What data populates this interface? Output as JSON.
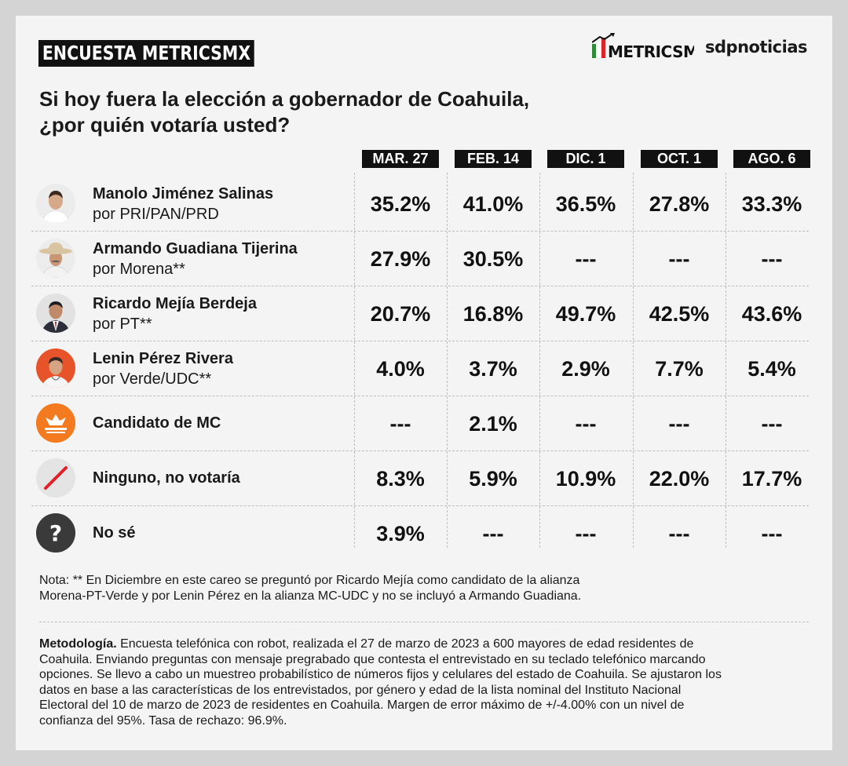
{
  "header": {
    "tag": "ENCUESTA METRICSMX",
    "logo_metrics": "METRICSMX",
    "logo_sdp": "sdpnoticias"
  },
  "question_lines": [
    "Si hoy fuera la elección a gobernador de Coahuila,",
    "¿por quién votaría usted?"
  ],
  "chart_data": {
    "type": "table",
    "columns": [
      "MAR. 27",
      "FEB. 14",
      "DIC. 1",
      "OCT. 1",
      "AGO. 6"
    ],
    "rows": [
      {
        "name": "Manolo Jiménez Salinas",
        "party": "por PRI/PAN/PRD",
        "avatar": "person-photo",
        "values": [
          "35.2%",
          "41.0%",
          "36.5%",
          "27.8%",
          "33.3%"
        ]
      },
      {
        "name": "Armando Guadiana Tijerina",
        "party": "por Morena**",
        "avatar": "person-photo",
        "values": [
          "27.9%",
          "30.5%",
          "---",
          "---",
          "---"
        ]
      },
      {
        "name": "Ricardo Mejía Berdeja",
        "party": "por PT**",
        "avatar": "person-photo",
        "values": [
          "20.7%",
          "16.8%",
          "49.7%",
          "42.5%",
          "43.6%"
        ]
      },
      {
        "name": "Lenin Pérez Rivera",
        "party": "por Verde/UDC**",
        "avatar": "person-photo",
        "values": [
          "4.0%",
          "3.7%",
          "2.9%",
          "7.7%",
          "5.4%"
        ]
      },
      {
        "name": "Candidato de MC",
        "party": "",
        "avatar": "movimiento-ciudadano-logo",
        "values": [
          "---",
          "2.1%",
          "---",
          "---",
          "---"
        ]
      },
      {
        "name": "Ninguno, no votaría",
        "party": "",
        "avatar": "slash-icon",
        "values": [
          "8.3%",
          "5.9%",
          "10.9%",
          "22.0%",
          "17.7%"
        ]
      },
      {
        "name": "No sé",
        "party": "",
        "avatar": "question-icon",
        "values": [
          "3.9%",
          "---",
          "---",
          "---",
          "---"
        ]
      }
    ]
  },
  "note": {
    "line1": "Nota: ** En Diciembre en este careo se preguntó por Ricardo Mejía como candidato de la alianza",
    "line2": "Morena-PT-Verde y por Lenin Pérez en la alianza MC-UDC y no se incluyó a Armando Guadiana."
  },
  "methodology": {
    "label": "Metodología.",
    "line1": " Encuesta telefónica con robot, realizada el 27 de marzo de 2023 a 600 mayores de edad residentes de",
    "line2": "Coahuila. Enviando preguntas con mensaje pregrabado que contesta el entrevistado en su teclado telefónico marcando",
    "line3": "opciones. Se llevo a cabo un muestreo probabilístico de números fijos y celulares del estado de Coahuila. Se ajustaron los",
    "line4": "datos en base a las características de los entrevistados, por género y edad de la lista nominal del Instituto Nacional",
    "line5": "Electoral del 10 de marzo de 2023 de residentes en Coahuila. Margen de error máximo de +/-4.00% con un nivel de",
    "line6": "confianza del 95%. Tasa de rechazo: 96.9%."
  },
  "colors": {
    "card": "#f4f4f4",
    "header_bg": "#111111",
    "mc_orange": "#f47a20",
    "lenin_orange": "#e8542a",
    "no_se_dark": "#3a3a3a",
    "slash_red": "#e2202b"
  }
}
